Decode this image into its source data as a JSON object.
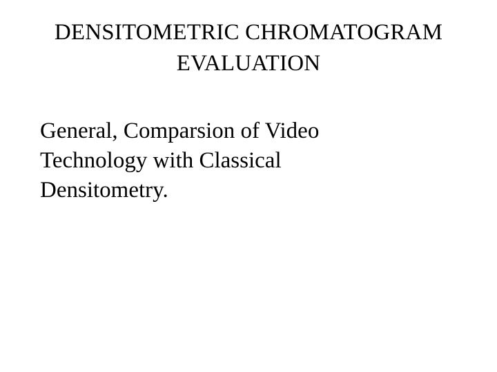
{
  "title": {
    "line1": "DENSITOMETRIC CHROMATOGRAM",
    "line2": "EVALUATION"
  },
  "body": {
    "line1": "General, Comparsion of Video",
    "line2": "Technology with Classical",
    "line3": "Densitometry."
  },
  "colors": {
    "background": "#ffffff",
    "text": "#000000"
  },
  "typography": {
    "font_family": "Times New Roman",
    "title_fontsize": 33,
    "body_fontsize": 33
  }
}
